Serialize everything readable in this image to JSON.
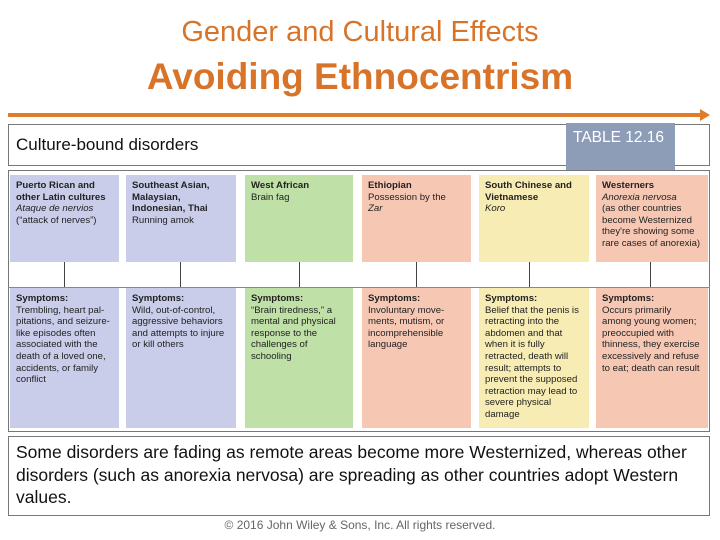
{
  "header": {
    "subtitle": "Gender and Cultural Effects",
    "title": "Avoiding Ethnocentrism"
  },
  "section": {
    "label": "Culture-bound disorders",
    "table_tag": "TABLE 12.16"
  },
  "columns": [
    {
      "color": "#c9cdea",
      "region": "Puerto Rican and other Latin cultures",
      "disorder": "Ataque de nervios",
      "disorder_note": "(“attack of nerves”)",
      "symptoms_label": "Symptoms:",
      "symptoms": "Trembling, heart pal-pitations, and seizure-like episodes often associated with the death of a loved one, accidents, or family conflict"
    },
    {
      "color": "#c9cdea",
      "region": "Southeast Asian, Malaysian, Indonesian, Thai",
      "disorder": "Running amok",
      "disorder_note": "",
      "symptoms_label": "Symptoms:",
      "symptoms": "Wild, out-of-control, aggressive behaviors and attempts to injure or kill others"
    },
    {
      "color": "#bfe0a6",
      "region": "West African",
      "disorder": "Brain fag",
      "disorder_note": "",
      "symptoms_label": "Symptoms:",
      "symptoms": "“Brain tiredness,” a mental and physical response to the challenges of schooling"
    },
    {
      "color": "#f6c8b4",
      "region": "Ethiopian",
      "disorder": "Possession by the",
      "disorder_note": "Zar",
      "symptoms_label": "Symptoms:",
      "symptoms": "Involuntary move-ments, mutism, or incomprehensible language"
    },
    {
      "color": "#f7ecb4",
      "region": "South Chinese and Vietnamese",
      "disorder": "Koro",
      "disorder_note": "",
      "symptoms_label": "Symptoms:",
      "symptoms": "Belief that the penis is retracting into the abdomen and that when it is fully retracted, death will result; attempts to prevent the supposed retraction may lead to severe physical damage"
    },
    {
      "color": "#f6c8b4",
      "region": "Westerners",
      "disorder": "Anorexia nervosa",
      "disorder_note": "(as other countries become Westernized they're showing some rare cases of anorexia)",
      "symptoms_label": "Symptoms:",
      "symptoms": "Occurs primarily among young women; preoccupied with thinness, they exercise excessively and refuse to eat; death can result"
    }
  ],
  "caption": "Some disorders are fading as remote areas become more Westernized, whereas other disorders (such as anorexia nervosa) are spreading as other countries adopt Western values.",
  "copyright": "© 2016 John Wiley & Sons, Inc. All rights reserved."
}
